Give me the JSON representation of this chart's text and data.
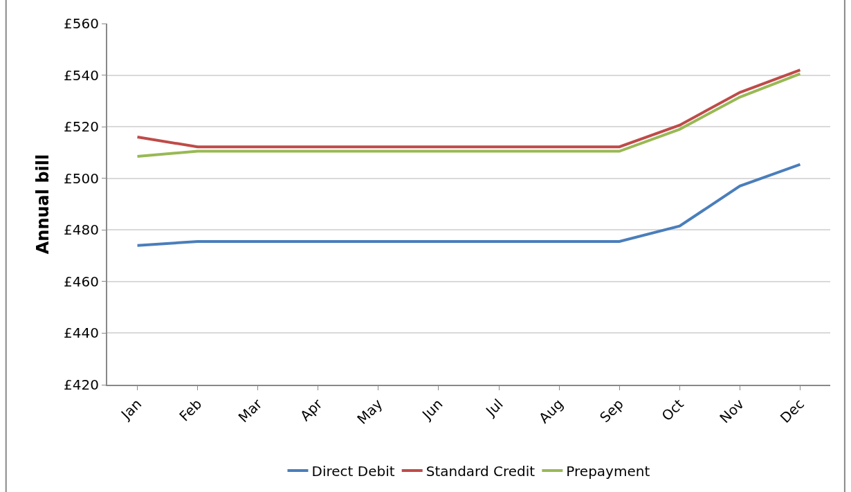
{
  "chart_data": {
    "type": "line",
    "ylabel": "Annual bill",
    "categories": [
      "Jan",
      "Feb",
      "Mar",
      "Apr",
      "May",
      "Jun",
      "Jul",
      "Aug",
      "Sep",
      "Oct",
      "Nov",
      "Dec"
    ],
    "series": [
      {
        "name": "Direct Debit",
        "color": "#4a7ebb",
        "values": [
          474,
          475.5,
          475.5,
          475.5,
          475.5,
          475.5,
          475.5,
          475.5,
          475.5,
          481.5,
          497,
          505.4
        ]
      },
      {
        "name": "Standard Credit",
        "color": "#be4b48",
        "values": [
          516,
          512.2,
          512.2,
          512.2,
          512.2,
          512.2,
          512.2,
          512.2,
          512.2,
          520.6,
          533.3,
          542
        ]
      },
      {
        "name": "Prepayment",
        "color": "#98b954",
        "values": [
          508.5,
          510.5,
          510.5,
          510.5,
          510.5,
          510.5,
          510.5,
          510.5,
          510.5,
          519,
          531.5,
          540.5
        ]
      }
    ],
    "ylim": [
      420,
      560
    ],
    "yticks": [
      {
        "value": 420,
        "label": "£420"
      },
      {
        "value": 440,
        "label": "£440"
      },
      {
        "value": 460,
        "label": "£460"
      },
      {
        "value": 480,
        "label": "£480"
      },
      {
        "value": 500,
        "label": "£500"
      },
      {
        "value": 520,
        "label": "£520"
      },
      {
        "value": 540,
        "label": "£540"
      },
      {
        "value": 560,
        "label": "£560"
      }
    ],
    "grid": "y",
    "legend": "bottom",
    "marker": "none",
    "line_style": "solid"
  }
}
